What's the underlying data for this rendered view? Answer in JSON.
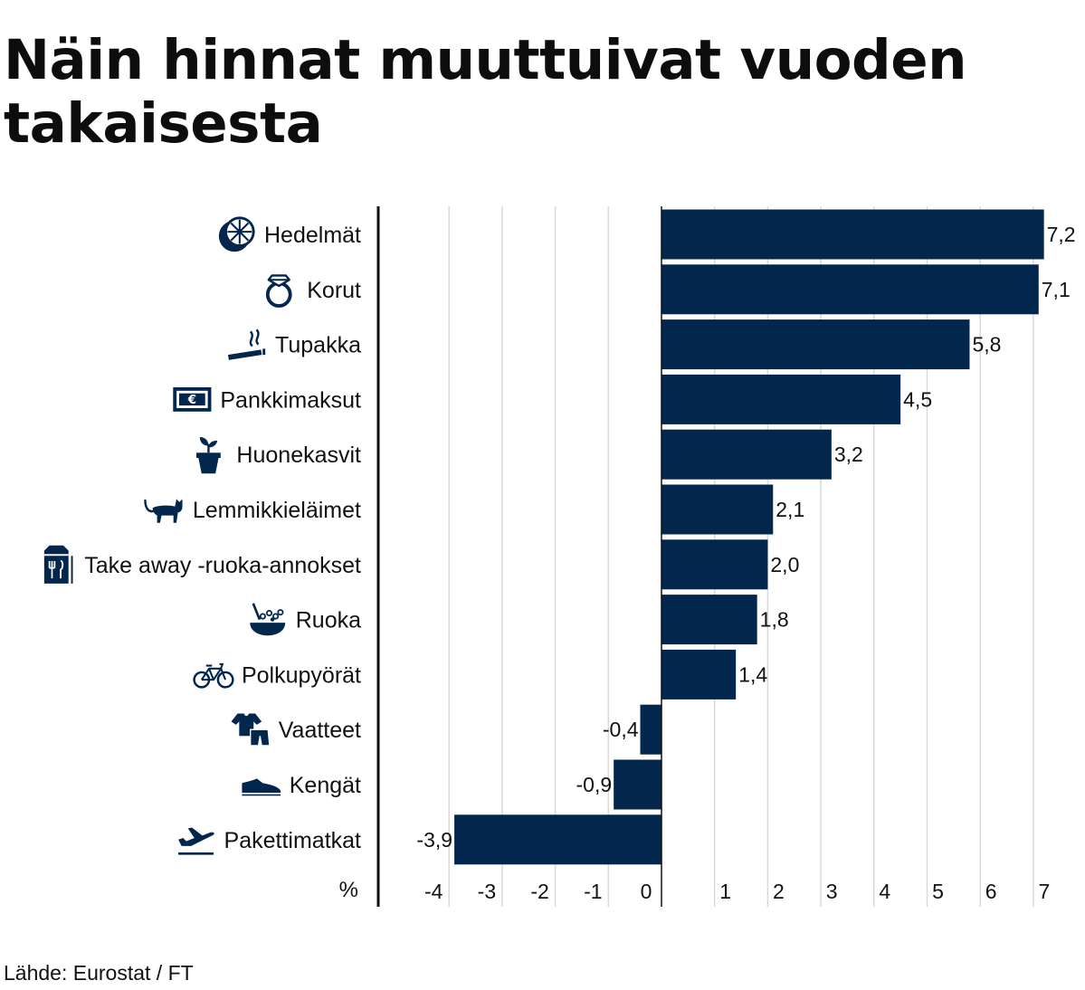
{
  "title": "Näin hinnat muuttuivat vuoden takaisesta",
  "source": "Lähde: Eurostat / FT",
  "colors": {
    "bar": "#03264d",
    "grid": "#d9d9d9",
    "axis": "#111111",
    "icon": "#03264d"
  },
  "chart_data": {
    "type": "bar",
    "orientation": "horizontal",
    "title": "Näin hinnat muuttuivat vuoden takaisesta",
    "unit_label": "%",
    "xlim": [
      -5,
      8
    ],
    "ticks": [
      -4,
      -3,
      -2,
      -1,
      0,
      1,
      2,
      3,
      4,
      5,
      6,
      7,
      8
    ],
    "grid": true,
    "categories": [
      "Hedelmät",
      "Korut",
      "Tupakka",
      "Pankkimaksut",
      "Huonekasvit",
      "Lemmikkieläimet",
      "Take away -ruoka-annokset",
      "Ruoka",
      "Polkupyörät",
      "Vaatteet",
      "Kengät",
      "Pakettimatkat"
    ],
    "values": [
      7.2,
      7.1,
      5.8,
      4.5,
      3.2,
      2.1,
      2.0,
      1.8,
      1.4,
      -0.4,
      -0.9,
      -3.9
    ],
    "value_labels": [
      "7,2",
      "7,1",
      "5,8",
      "4,5",
      "3,2",
      "2,1",
      "2,0",
      "1,8",
      "1,4",
      "-0,4",
      "-0,9",
      "-3,9"
    ],
    "icons": [
      "orange-icon",
      "ring-icon",
      "cigarette-icon",
      "banknote-icon",
      "plant-icon",
      "cat-icon",
      "takeaway-bag-icon",
      "food-bowl-icon",
      "bicycle-icon",
      "clothes-icon",
      "shoe-icon",
      "airplane-icon"
    ]
  }
}
